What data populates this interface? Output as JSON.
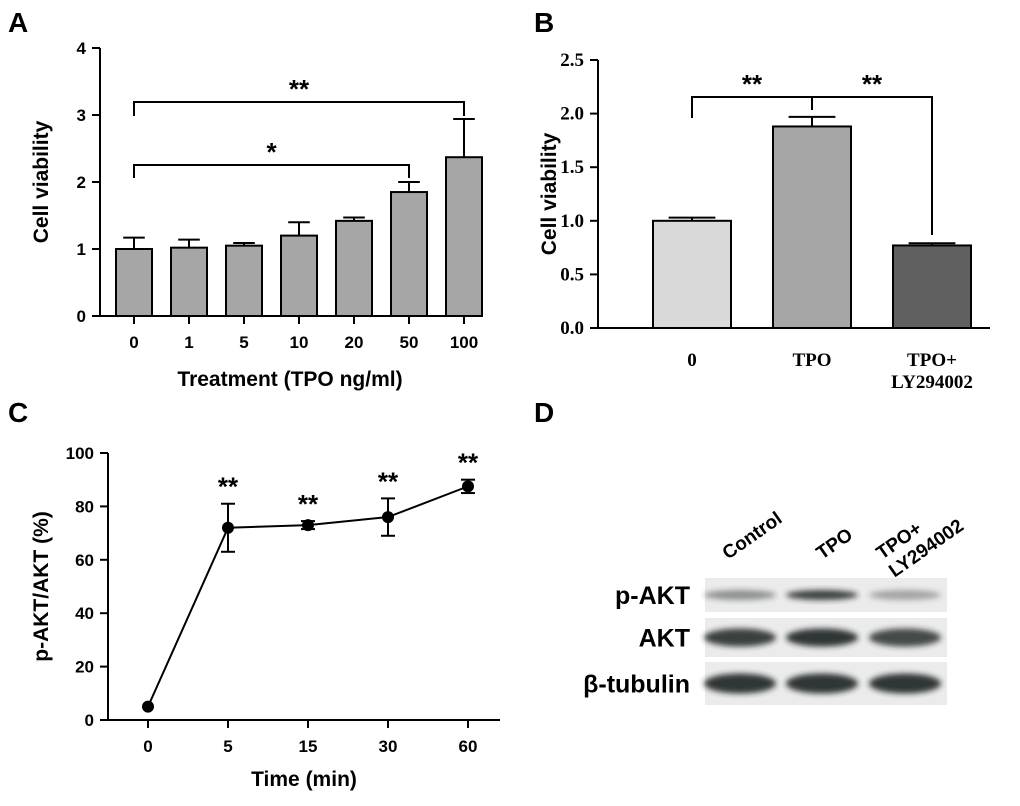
{
  "chart_data": [
    {
      "type": "bar",
      "panel": "A",
      "xlabel": "Treatment (TPO ng/ml)",
      "ylabel": "Cell viability",
      "categories": [
        "0",
        "1",
        "5",
        "10",
        "20",
        "50",
        "100"
      ],
      "values": [
        1.0,
        1.02,
        1.05,
        1.2,
        1.42,
        1.85,
        2.37
      ],
      "errors": [
        0.17,
        0.12,
        0.04,
        0.2,
        0.05,
        0.15,
        0.57
      ],
      "colors": [
        "#a6a6a6",
        "#a6a6a6",
        "#a6a6a6",
        "#a6a6a6",
        "#a6a6a6",
        "#a6a6a6",
        "#a6a6a6"
      ],
      "ylim": [
        0,
        4
      ],
      "yticks": [
        0,
        1,
        2,
        3,
        4
      ],
      "annotations": [
        "**",
        "*"
      ]
    },
    {
      "type": "bar",
      "panel": "B",
      "ylabel": "Cell viability",
      "categories": [
        "0",
        "TPO",
        "TPO+\nLY294002"
      ],
      "values": [
        1.0,
        1.88,
        0.77
      ],
      "errors": [
        0.03,
        0.09,
        0.02
      ],
      "colors": [
        "#d9d9d9",
        "#a6a6a6",
        "#606060"
      ],
      "ylim": [
        0,
        2.5
      ],
      "yticks": [
        {
          "value": 0,
          "label": "0.0"
        },
        0.5,
        {
          "value": 1,
          "label": "1.0"
        },
        1.5,
        {
          "value": 2,
          "label": "2.0"
        },
        2.5
      ],
      "annotations": [
        "**",
        "**"
      ]
    },
    {
      "type": "line",
      "panel": "C",
      "xlabel": "Time (min)",
      "ylabel": "p-AKT/AKT (%)",
      "categories": [
        "0",
        "5",
        "15",
        "30",
        "60"
      ],
      "values": [
        5,
        72,
        73,
        76,
        87.5
      ],
      "errors": [
        0,
        9,
        1.5,
        7,
        2.5
      ],
      "color": "#000000",
      "ylim": [
        0,
        100
      ],
      "yticks": [
        0,
        20,
        40,
        60,
        80,
        100
      ],
      "annotations": [
        "**",
        "**",
        "**",
        "**"
      ]
    }
  ],
  "blot": {
    "panel": "D",
    "lanes": [
      "Control",
      "TPO",
      "TPO+\nLY294002"
    ],
    "rows": [
      "p-AKT",
      "AKT",
      "β-tubulin"
    ]
  }
}
